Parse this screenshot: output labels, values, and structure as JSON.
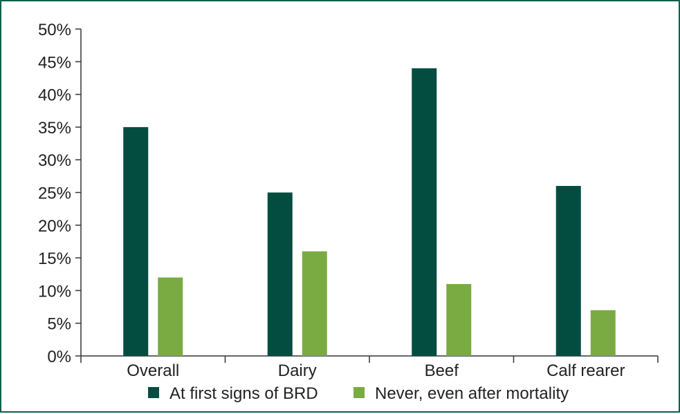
{
  "chart_data": {
    "type": "bar",
    "categories": [
      "Overall",
      "Dairy",
      "Beef",
      "Calf rearer"
    ],
    "series": [
      {
        "name": "At first signs of BRD",
        "values": [
          35,
          25,
          44,
          26
        ],
        "color": "#024d3f"
      },
      {
        "name": "Never, even after mortality",
        "values": [
          12,
          16,
          11,
          7
        ],
        "color": "#7aab43"
      }
    ],
    "ylim": [
      0,
      50
    ],
    "ytick_values": [
      0,
      5,
      10,
      15,
      20,
      25,
      30,
      35,
      40,
      45,
      50
    ],
    "ytick_labels": [
      "0%",
      "5%",
      "10%",
      "15%",
      "20%",
      "25%",
      "30%",
      "35%",
      "40%",
      "45%",
      "50%"
    ],
    "title": "",
    "xlabel": "",
    "ylabel": "",
    "grid": false,
    "legend_position": "bottom",
    "frame_color": "#0d5f4c"
  }
}
